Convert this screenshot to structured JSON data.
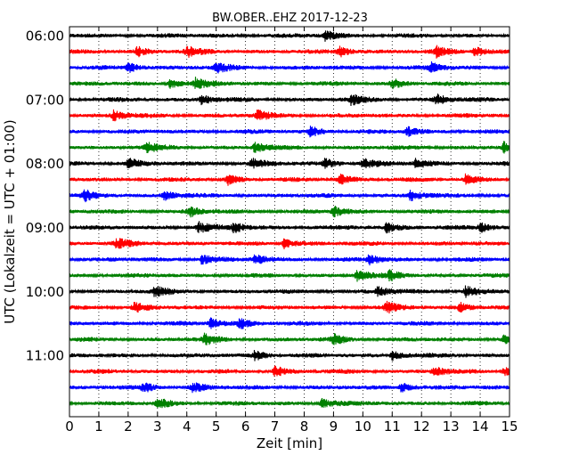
{
  "chart_data": {
    "type": "line",
    "title": "BW.OBER..EHZ 2017-12-23",
    "xlabel": "Zeit  [min]",
    "ylabel": "UTC (Lokalzeit = UTC + 01:00)",
    "x_ticks": [
      "0",
      "1",
      "2",
      "3",
      "4",
      "5",
      "6",
      "7",
      "8",
      "9",
      "10",
      "11",
      "12",
      "13",
      "14",
      "15"
    ],
    "xlim": [
      0,
      15
    ],
    "y_ticks": [
      {
        "label": "06:00",
        "trace": 0
      },
      {
        "label": "07:00",
        "trace": 4
      },
      {
        "label": "08:00",
        "trace": 8
      },
      {
        "label": "09:00",
        "trace": 12
      },
      {
        "label": "10:00",
        "trace": 16
      },
      {
        "label": "11:00",
        "trace": 20
      }
    ],
    "trace_interval_min": 15,
    "trace_colors": [
      "#000000",
      "#ff0000",
      "#0000ff",
      "#008000"
    ],
    "grid": "vertical dotted",
    "traces": [
      {
        "start": "06:00",
        "color": "#000000",
        "events_min": [
          8.7
        ]
      },
      {
        "start": "06:15",
        "color": "#ff0000",
        "events_min": [
          2.3,
          4.0,
          9.2,
          12.5,
          13.8
        ]
      },
      {
        "start": "06:30",
        "color": "#0000ff",
        "events_min": [
          2.0,
          5.0,
          12.3
        ]
      },
      {
        "start": "06:45",
        "color": "#008000",
        "events_min": [
          3.4,
          4.3,
          11.0
        ]
      },
      {
        "start": "07:00",
        "color": "#000000",
        "events_min": [
          4.5,
          9.6,
          12.5
        ]
      },
      {
        "start": "07:15",
        "color": "#ff0000",
        "events_min": [
          1.5,
          6.4
        ]
      },
      {
        "start": "07:30",
        "color": "#0000ff",
        "events_min": [
          8.2,
          11.5
        ]
      },
      {
        "start": "07:45",
        "color": "#008000",
        "events_min": [
          2.6,
          6.3,
          14.8
        ]
      },
      {
        "start": "08:00",
        "color": "#000000",
        "events_min": [
          2.0,
          6.2,
          8.7,
          10.0,
          11.8
        ]
      },
      {
        "start": "08:15",
        "color": "#ff0000",
        "events_min": [
          5.4,
          9.2,
          13.5
        ]
      },
      {
        "start": "08:30",
        "color": "#0000ff",
        "events_min": [
          0.5,
          3.2,
          11.6
        ]
      },
      {
        "start": "08:45",
        "color": "#008000",
        "events_min": [
          4.1,
          9.0
        ]
      },
      {
        "start": "09:00",
        "color": "#000000",
        "events_min": [
          4.4,
          5.6,
          10.8,
          14.0
        ]
      },
      {
        "start": "09:15",
        "color": "#ff0000",
        "events_min": [
          1.6,
          7.3
        ]
      },
      {
        "start": "09:30",
        "color": "#0000ff",
        "events_min": [
          4.5,
          6.3,
          10.2
        ]
      },
      {
        "start": "09:45",
        "color": "#008000",
        "events_min": [
          9.8,
          10.9
        ]
      },
      {
        "start": "10:00",
        "color": "#000000",
        "events_min": [
          2.9,
          10.5,
          13.5
        ]
      },
      {
        "start": "10:15",
        "color": "#ff0000",
        "events_min": [
          2.2,
          10.8,
          13.3
        ]
      },
      {
        "start": "10:30",
        "color": "#0000ff",
        "events_min": [
          4.8,
          5.8
        ]
      },
      {
        "start": "10:45",
        "color": "#008000",
        "events_min": [
          4.6,
          9.0,
          14.8
        ]
      },
      {
        "start": "11:00",
        "color": "#000000",
        "events_min": [
          6.3,
          11.0
        ]
      },
      {
        "start": "11:15",
        "color": "#ff0000",
        "events_min": [
          7.0,
          12.4,
          14.8
        ]
      },
      {
        "start": "11:30",
        "color": "#0000ff",
        "events_min": [
          2.5,
          4.2,
          11.3
        ]
      },
      {
        "start": "11:45",
        "color": "#008000",
        "events_min": [
          3.0,
          8.6
        ]
      }
    ]
  }
}
